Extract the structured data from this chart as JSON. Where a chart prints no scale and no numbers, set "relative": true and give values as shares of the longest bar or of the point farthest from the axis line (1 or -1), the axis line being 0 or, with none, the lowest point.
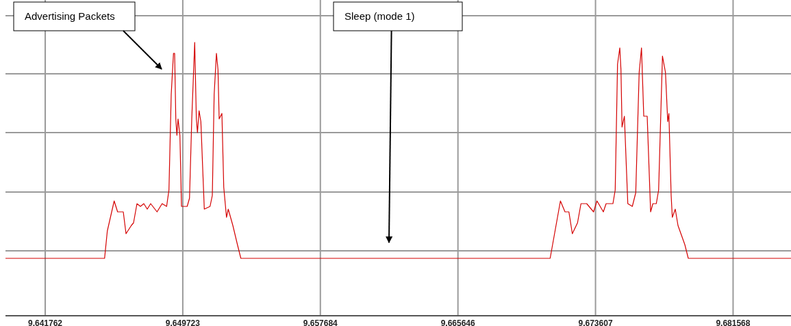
{
  "chart_data": {
    "type": "line",
    "relative": true,
    "grid": true,
    "marker": "none",
    "line_style": "solid",
    "xlim": [
      9.639463,
      9.684919
    ],
    "xticks": [
      9.641762,
      9.649723,
      9.657684,
      9.665646,
      9.673607,
      9.681568
    ],
    "annotations": [
      "Advertising Packets",
      "Sleep (mode 1)"
    ],
    "series": [
      {
        "color": "#d40000",
        "x": [
          9.639463,
          9.645198,
          9.645356,
          9.645753,
          9.645951,
          9.64628,
          9.646438,
          9.646743,
          9.646874,
          9.647072,
          9.647271,
          9.647469,
          9.647667,
          9.647865,
          9.648234,
          9.648527,
          9.648788,
          9.648923,
          9.649054,
          9.649185,
          9.649252,
          9.649319,
          9.649383,
          9.64945,
          9.649557,
          9.649648,
          9.649977,
          9.650112,
          9.650243,
          9.650413,
          9.650508,
          9.650572,
          9.650667,
          9.65077,
          9.650968,
          9.651301,
          9.651432,
          9.651539,
          9.65167,
          9.651761,
          9.651828,
          9.651987,
          9.652094,
          9.652252,
          9.652355,
          9.652621,
          9.652886,
          9.653084,
          9.653544,
          9.670981,
          9.671576,
          9.671841,
          9.672067,
          9.672265,
          9.672566,
          9.672765,
          9.673097,
          9.673494,
          9.673692,
          9.67406,
          9.674219,
          9.674615,
          9.674746,
          9.674881,
          9.675012,
          9.675079,
          9.675142,
          9.675277,
          9.675475,
          9.675737,
          9.675935,
          9.676133,
          9.676268,
          9.676399,
          9.676597,
          9.676795,
          9.676926,
          9.677124,
          9.677259,
          9.677481,
          9.677655,
          9.677786,
          9.677853,
          9.677984,
          9.678051,
          9.678222,
          9.67838,
          9.678776,
          9.678975,
          9.679304,
          9.684919
        ],
        "values": [
          0.21,
          0.21,
          0.31,
          0.42,
          0.38,
          0.38,
          0.3,
          0.33,
          0.34,
          0.41,
          0.4,
          0.41,
          0.39,
          0.41,
          0.38,
          0.41,
          0.4,
          0.46,
          0.81,
          0.96,
          0.96,
          0.72,
          0.66,
          0.72,
          0.66,
          0.4,
          0.4,
          0.43,
          0.72,
          1.0,
          0.72,
          0.67,
          0.75,
          0.71,
          0.39,
          0.4,
          0.44,
          0.81,
          0.96,
          0.9,
          0.72,
          0.74,
          0.47,
          0.36,
          0.39,
          0.33,
          0.26,
          0.21,
          0.21,
          0.21,
          0.42,
          0.38,
          0.38,
          0.3,
          0.34,
          0.41,
          0.41,
          0.38,
          0.42,
          0.38,
          0.41,
          0.41,
          0.46,
          0.92,
          0.98,
          0.9,
          0.69,
          0.73,
          0.41,
          0.4,
          0.45,
          0.89,
          0.98,
          0.73,
          0.73,
          0.38,
          0.41,
          0.41,
          0.46,
          0.95,
          0.89,
          0.71,
          0.74,
          0.44,
          0.36,
          0.39,
          0.33,
          0.26,
          0.21,
          0.21,
          0.21
        ]
      }
    ]
  }
}
